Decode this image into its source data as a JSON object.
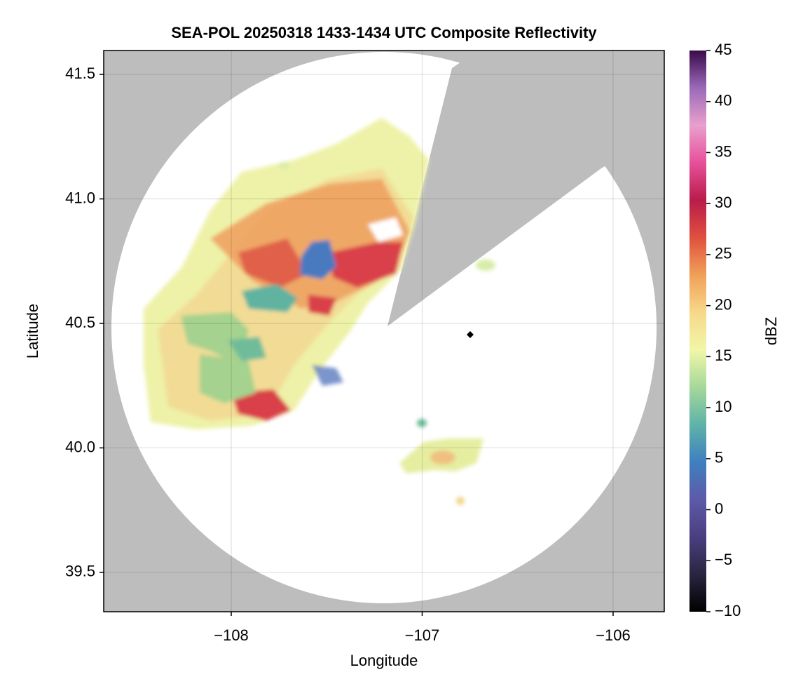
{
  "chart_data": {
    "type": "radar-map",
    "title": "SEA-POL 20250318 1433-1434 UTC Composite Reflectivity",
    "x_label": "Longitude",
    "y_label": "Latitude",
    "xlim": [
      -108.668,
      -105.732
    ],
    "ylim": [
      39.342,
      41.596
    ],
    "xticks": [
      {
        "value": -108,
        "label": "−108"
      },
      {
        "value": -107,
        "label": "−107"
      },
      {
        "value": -106,
        "label": "−106"
      }
    ],
    "yticks": [
      39.5,
      {
        "value": 40.0,
        "label": "40.0"
      },
      40.5,
      {
        "value": 41.0,
        "label": "41.0"
      },
      41.5
    ],
    "grid": true,
    "colorbar": {
      "label": "dBZ",
      "lim": [
        -10,
        45
      ],
      "ticks": [
        {
          "value": -10,
          "label": "−10"
        },
        {
          "value": -5,
          "label": "−5"
        },
        0,
        5,
        10,
        15,
        20,
        25,
        30,
        35,
        40,
        45
      ],
      "colors": [
        "#000000",
        "#2a2540",
        "#4a3f80",
        "#5d5aa8",
        "#3f7fbf",
        "#5fb3a8",
        "#a5d89a",
        "#f2f6a8",
        "#f7d88a",
        "#f0a058",
        "#e0503f",
        "#b81c4a",
        "#e7509a",
        "#e8a0cc",
        "#9a6ab8",
        "#3a0a4a"
      ]
    }
  }
}
